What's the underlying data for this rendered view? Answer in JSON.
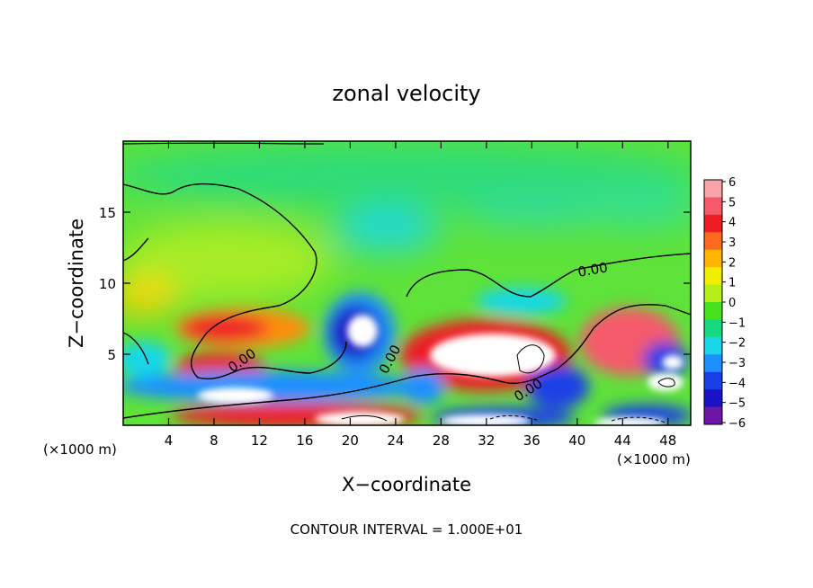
{
  "chart_data": {
    "type": "heatmap",
    "title": "zonal velocity",
    "xlabel": "X−coordinate",
    "ylabel": "Z−coordinate",
    "x_unit": "(×1000 m)",
    "y_unit": "(×1000 m)",
    "xlim": [
      0,
      50
    ],
    "ylim": [
      0,
      20
    ],
    "x_ticks": [
      4,
      8,
      12,
      16,
      20,
      24,
      28,
      32,
      36,
      40,
      44,
      48
    ],
    "y_ticks": [
      5,
      10,
      15
    ],
    "footer": "CONTOUR INTERVAL = 1.000E+01",
    "contour_label": "0.00",
    "colorbar": {
      "ticks": [
        "6",
        "5",
        "4",
        "3",
        "2",
        "1",
        "0",
        "−1",
        "−2",
        "−3",
        "−4",
        "−5",
        "−6"
      ],
      "colors": [
        "#f7a3a8",
        "#f45a6a",
        "#ee1c25",
        "#fb6a1e",
        "#ffb400",
        "#f2ee00",
        "#b6ee19",
        "#46e01e",
        "#16d982",
        "#19d7e8",
        "#1e8fff",
        "#1b3fe6",
        "#1a12c4",
        "#6b16a4"
      ]
    }
  }
}
